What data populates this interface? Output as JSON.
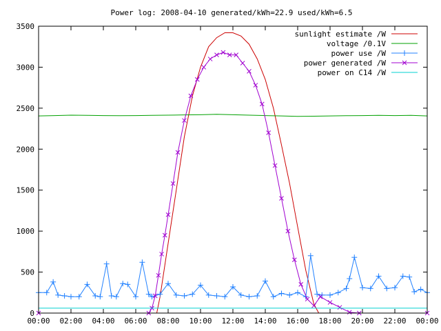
{
  "chart_data": {
    "type": "line",
    "title": "Power log: 2008-04-10 generated/kWh=22.9 used/kWh=6.5",
    "xlabel": "",
    "ylabel": "",
    "xlim": [
      0,
      24
    ],
    "ylim": [
      0,
      3500
    ],
    "x_ticks": [
      "00:00",
      "02:00",
      "04:00",
      "06:00",
      "08:00",
      "10:00",
      "12:00",
      "14:00",
      "16:00",
      "18:00",
      "20:00",
      "22:00",
      "00:00"
    ],
    "y_ticks": [
      0,
      500,
      1000,
      1500,
      2000,
      2500,
      3000,
      3500
    ],
    "grid": false,
    "legend_position": "top-right",
    "series": [
      {
        "name": "sunlight estimate /W",
        "color": "#cc0000",
        "style": "line",
        "x": [
          7.3,
          7.5,
          8.0,
          8.5,
          9.0,
          9.5,
          10.0,
          10.5,
          11.0,
          11.5,
          12.0,
          12.5,
          13.0,
          13.5,
          14.0,
          14.5,
          15.0,
          15.5,
          16.0,
          16.5,
          17.0,
          17.3
        ],
        "y": [
          0,
          200,
          850,
          1500,
          2150,
          2650,
          3000,
          3250,
          3360,
          3420,
          3420,
          3380,
          3280,
          3100,
          2850,
          2500,
          2050,
          1580,
          1050,
          520,
          110,
          0
        ]
      },
      {
        "name": "voltage /0.1V",
        "color": "#00a000",
        "style": "line",
        "x": [
          0,
          1,
          2,
          3,
          4,
          5,
          6,
          7,
          8,
          9,
          10,
          11,
          12,
          13,
          14,
          15,
          16,
          17,
          18,
          19,
          20,
          21,
          22,
          23,
          24
        ],
        "y": [
          2405,
          2410,
          2415,
          2412,
          2410,
          2408,
          2410,
          2412,
          2415,
          2418,
          2420,
          2425,
          2420,
          2415,
          2410,
          2405,
          2400,
          2402,
          2405,
          2408,
          2410,
          2412,
          2410,
          2412,
          2405
        ]
      },
      {
        "name": "power use /W",
        "color": "#2080ff",
        "style": "linepoints",
        "x": [
          0.0,
          0.5,
          0.9,
          1.2,
          1.6,
          2.0,
          2.5,
          3.0,
          3.5,
          3.8,
          4.2,
          4.5,
          4.8,
          5.2,
          5.5,
          6.0,
          6.4,
          6.8,
          7.0,
          7.5,
          8.0,
          8.5,
          9.0,
          9.5,
          10.0,
          10.5,
          11.0,
          11.5,
          12.0,
          12.5,
          13.0,
          13.5,
          14.0,
          14.5,
          15.0,
          15.5,
          16.0,
          16.5,
          16.8,
          17.2,
          17.5,
          18.0,
          18.5,
          19.0,
          19.2,
          19.5,
          20.0,
          20.5,
          21.0,
          21.5,
          22.0,
          22.5,
          22.9,
          23.2,
          23.6,
          24.0
        ],
        "y": [
          250,
          250,
          380,
          220,
          210,
          200,
          200,
          350,
          210,
          200,
          600,
          210,
          200,
          360,
          350,
          200,
          620,
          230,
          200,
          230,
          360,
          220,
          210,
          230,
          340,
          220,
          210,
          200,
          320,
          220,
          200,
          210,
          390,
          200,
          240,
          220,
          250,
          200,
          700,
          230,
          220,
          220,
          250,
          300,
          420,
          680,
          310,
          300,
          450,
          300,
          310,
          450,
          440,
          260,
          290,
          250
        ]
      },
      {
        "name": "power generated /W",
        "color": "#a000d0",
        "style": "linepoints",
        "x": [
          0,
          6.8,
          7.0,
          7.2,
          7.4,
          7.6,
          7.8,
          8.0,
          8.3,
          8.6,
          9.0,
          9.4,
          9.8,
          10.2,
          10.6,
          11.0,
          11.4,
          11.8,
          12.2,
          12.6,
          13.0,
          13.4,
          13.8,
          14.2,
          14.6,
          15.0,
          15.4,
          15.8,
          16.2,
          16.6,
          17.0,
          17.4,
          18.0,
          18.6,
          19.2,
          19.8,
          24
        ],
        "y": [
          0,
          0,
          60,
          210,
          460,
          720,
          950,
          1200,
          1580,
          1960,
          2350,
          2650,
          2850,
          3000,
          3100,
          3150,
          3180,
          3150,
          3150,
          3050,
          2950,
          2780,
          2550,
          2200,
          1800,
          1400,
          1000,
          650,
          350,
          170,
          90,
          200,
          130,
          70,
          10,
          0,
          0
        ]
      },
      {
        "name": "power on C14 /W",
        "color": "#00d0d0",
        "style": "line",
        "x": [
          0,
          24
        ],
        "y": [
          60,
          60
        ]
      }
    ]
  }
}
